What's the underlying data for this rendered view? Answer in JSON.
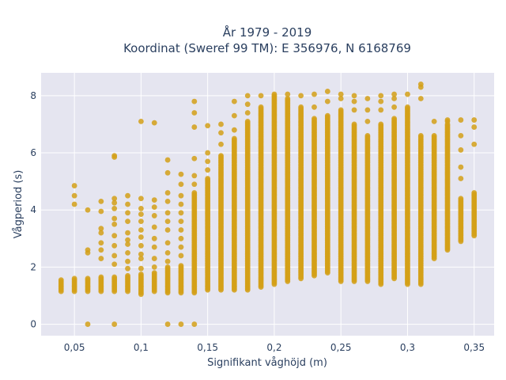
{
  "chart_data": {
    "type": "scatter",
    "title": "År 1979 - 2019",
    "subtitle": "Koordinat (Sweref 99 TM): E 356976, N 6168769",
    "xlabel": "Signifikant våghöjd (m)",
    "ylabel": "Vågperiod (s)",
    "xlim": [
      0.025,
      0.365
    ],
    "ylim": [
      -0.4,
      8.8
    ],
    "x_ticks": [
      0.05,
      0.1,
      0.15,
      0.2,
      0.25,
      0.3,
      0.35
    ],
    "x_tick_labels": [
      "0,05",
      "0,1",
      "0,15",
      "0,2",
      "0,25",
      "0,3",
      "0,35"
    ],
    "y_ticks": [
      0,
      2,
      4,
      6,
      8
    ],
    "y_tick_labels": [
      "0",
      "2",
      "4",
      "6",
      "8"
    ],
    "grid": true,
    "legend": "none",
    "marker_color": "#d4a017",
    "plot_background": "#e5e5f0",
    "series": [
      {
        "columns": [
          {
            "x": 0.04,
            "y_min": 1.15,
            "y_max": 1.55
          },
          {
            "x": 0.05,
            "y_min": 1.15,
            "y_max": 1.6,
            "extra": [
              4.2,
              4.5,
              4.85
            ]
          },
          {
            "x": 0.06,
            "y_min": 1.15,
            "y_max": 1.6,
            "extra": [
              0.0,
              2.5,
              2.6,
              4.0
            ]
          },
          {
            "x": 0.07,
            "y_min": 1.15,
            "y_max": 1.65,
            "extra": [
              2.3,
              2.6,
              2.85,
              3.2,
              3.35,
              3.95,
              4.3
            ]
          },
          {
            "x": 0.08,
            "y_min": 1.15,
            "y_max": 1.65,
            "extra": [
              0.0,
              2.1,
              2.4,
              2.75,
              3.1,
              3.5,
              3.7,
              4.05,
              4.25,
              4.4,
              5.85,
              5.9
            ]
          },
          {
            "x": 0.09,
            "y_min": 1.15,
            "y_max": 1.7,
            "extra": [
              1.95,
              2.2,
              2.5,
              2.8,
              2.95,
              3.2,
              3.6,
              3.9,
              4.2,
              4.5
            ]
          },
          {
            "x": 0.1,
            "y_min": 1.05,
            "y_max": 1.75,
            "extra": [
              1.95,
              2.3,
              2.45,
              2.75,
              3.05,
              3.3,
              3.6,
              3.85,
              4.05,
              4.4,
              7.1
            ]
          },
          {
            "x": 0.11,
            "y_min": 1.15,
            "y_max": 1.8,
            "extra": [
              2.0,
              2.3,
              2.7,
              3.0,
              3.4,
              3.8,
              4.1,
              4.35,
              7.05
            ]
          },
          {
            "x": 0.12,
            "y_min": 1.1,
            "y_max": 2.0,
            "extra": [
              0.0,
              2.2,
              2.5,
              2.85,
              3.3,
              3.6,
              3.9,
              4.3,
              4.6,
              5.3,
              5.75
            ]
          },
          {
            "x": 0.13,
            "y_min": 1.1,
            "y_max": 2.05,
            "extra": [
              0.0,
              2.4,
              2.7,
              3.0,
              3.3,
              3.6,
              3.9,
              4.2,
              4.5,
              4.9,
              5.25
            ]
          },
          {
            "x": 0.14,
            "y_min": 1.1,
            "y_max": 4.6,
            "extra": [
              0.0,
              4.9,
              5.2,
              5.8,
              6.9,
              7.4,
              7.8
            ]
          },
          {
            "x": 0.15,
            "y_min": 1.2,
            "y_max": 5.1,
            "extra": [
              5.4,
              5.7,
              6.0,
              6.95
            ]
          },
          {
            "x": 0.16,
            "y_min": 1.2,
            "y_max": 5.9,
            "extra": [
              6.3,
              6.7,
              7.0
            ]
          },
          {
            "x": 0.17,
            "y_min": 1.2,
            "y_max": 6.5,
            "extra": [
              6.8,
              7.3,
              7.8
            ]
          },
          {
            "x": 0.18,
            "y_min": 1.2,
            "y_max": 7.1,
            "extra": [
              7.4,
              7.7,
              8.0
            ]
          },
          {
            "x": 0.19,
            "y_min": 1.3,
            "y_max": 7.6,
            "extra": [
              8.0
            ]
          },
          {
            "x": 0.2,
            "y_min": 1.4,
            "y_max": 8.05
          },
          {
            "x": 0.21,
            "y_min": 1.5,
            "y_max": 7.9,
            "extra": [
              8.05
            ]
          },
          {
            "x": 0.22,
            "y_min": 1.6,
            "y_max": 7.6,
            "extra": [
              8.0
            ]
          },
          {
            "x": 0.23,
            "y_min": 1.7,
            "y_max": 7.2,
            "extra": [
              7.6,
              8.05
            ]
          },
          {
            "x": 0.24,
            "y_min": 1.8,
            "y_max": 7.3,
            "extra": [
              7.8,
              8.15
            ]
          },
          {
            "x": 0.25,
            "y_min": 1.5,
            "y_max": 7.5,
            "extra": [
              7.9,
              8.05
            ]
          },
          {
            "x": 0.26,
            "y_min": 1.5,
            "y_max": 7.0,
            "extra": [
              7.5,
              7.8,
              8.0
            ]
          },
          {
            "x": 0.27,
            "y_min": 1.5,
            "y_max": 6.6,
            "extra": [
              7.1,
              7.5,
              7.9
            ]
          },
          {
            "x": 0.28,
            "y_min": 1.4,
            "y_max": 7.0,
            "extra": [
              7.5,
              7.8,
              8.0
            ]
          },
          {
            "x": 0.29,
            "y_min": 1.6,
            "y_max": 7.2,
            "extra": [
              7.6,
              7.9,
              8.05
            ]
          },
          {
            "x": 0.3,
            "y_min": 1.4,
            "y_max": 7.6,
            "extra": [
              8.05
            ]
          },
          {
            "x": 0.31,
            "y_min": 1.4,
            "y_max": 6.6,
            "extra": [
              7.9,
              8.3,
              8.4
            ]
          },
          {
            "x": 0.32,
            "y_min": 2.3,
            "y_max": 6.6,
            "extra": [
              7.1
            ]
          },
          {
            "x": 0.33,
            "y_min": 2.6,
            "y_max": 7.0,
            "extra": [
              7.1,
              7.15
            ]
          },
          {
            "x": 0.34,
            "y_min": 2.9,
            "y_max": 4.4,
            "extra": [
              5.1,
              5.5,
              6.1,
              6.6,
              7.15
            ]
          },
          {
            "x": 0.35,
            "y_min": 3.1,
            "y_max": 4.6,
            "extra": [
              6.3,
              6.9,
              7.15
            ]
          }
        ]
      }
    ]
  }
}
